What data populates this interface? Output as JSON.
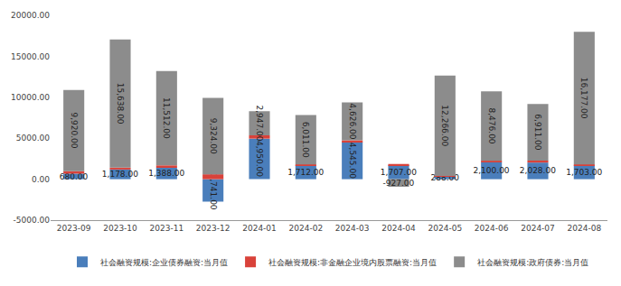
{
  "chart_data": {
    "type": "bar",
    "stacked": true,
    "data_labels": true,
    "legend": "bottom",
    "grid": false,
    "categories": [
      "2023-09",
      "2023-10",
      "2023-11",
      "2023-12",
      "2024-01",
      "2024-02",
      "2024-03",
      "2024-04",
      "2024-05",
      "2024-06",
      "2024-07",
      "2024-08"
    ],
    "ylim": [
      -5000,
      20000
    ],
    "yticks": [
      {
        "value": -5000,
        "label": "-5000.00"
      },
      {
        "value": 0,
        "label": "0.00"
      },
      {
        "value": 5000,
        "label": "5000.00"
      },
      {
        "value": 10000,
        "label": "10000.00"
      },
      {
        "value": 15000,
        "label": "15000.00"
      },
      {
        "value": 20000,
        "label": "20000.00"
      }
    ],
    "series": [
      {
        "name": "社会融资规模:企业债券融资:当月值",
        "color": "#4a7ebb",
        "values": [
          680,
          1178,
          1388,
          -2741,
          4950,
          1712,
          4545,
          1707,
          288,
          2100,
          2028,
          1703
        ],
        "value_labels": [
          "680.00",
          "1,178.00",
          "1,388.00",
          "-2,741.00",
          "4,950.00",
          "1,712.00",
          "4,545.00",
          "1,707.00",
          "288.00",
          "2,100.00",
          "2,028.00",
          "1,703.00"
        ]
      },
      {
        "name": "社会融资规模:非金融企业境内股票融资:当月值",
        "color": "#d9423a",
        "data_labels": false,
        "values": [
          300,
          230,
          300,
          600,
          400,
          100,
          200,
          150,
          100,
          150,
          250,
          100
        ]
      },
      {
        "name": "社会融资规模:政府债券:当月值",
        "color": "#8c8c8c",
        "values": [
          9920,
          15638,
          11512,
          9324,
          2947,
          6011,
          4626,
          -927,
          12266,
          8476,
          6911,
          16177
        ],
        "value_labels": [
          "9,920.00",
          "15,638.00",
          "11,512.00",
          "9,324.00",
          "2,947.00",
          "6,011.00",
          "4,626.00",
          "-927.00",
          "12,266.00",
          "8,476.00",
          "6,911.00",
          "16,177.00"
        ]
      }
    ]
  }
}
